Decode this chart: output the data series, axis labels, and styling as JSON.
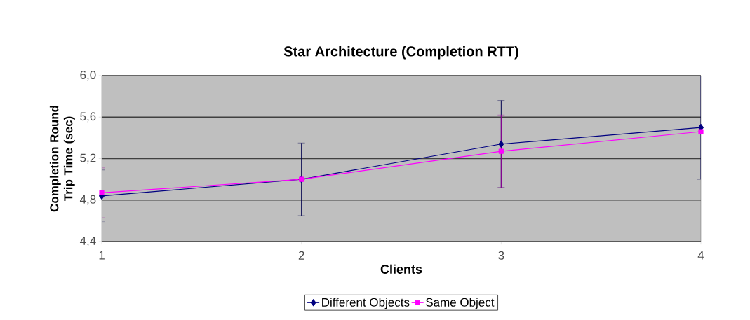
{
  "chart_data": {
    "type": "line",
    "title": "Star Architecture (Completion RTT)",
    "xlabel": "Clients",
    "ylabel": "Completion Round Trip Time (sec)",
    "x": [
      1,
      2,
      3,
      4
    ],
    "xlim": [
      1,
      4
    ],
    "xticks": [
      1,
      2,
      3,
      4
    ],
    "ylim": [
      4.4,
      6.0
    ],
    "yticks": [
      {
        "value": 4.4,
        "label": "4,4"
      },
      {
        "value": 4.8,
        "label": "4,8"
      },
      {
        "value": 5.2,
        "label": "5,2"
      },
      {
        "value": 5.6,
        "label": "5,6"
      },
      {
        "value": 6.0,
        "label": "6,0"
      }
    ],
    "grid": "y",
    "legend": "bottom",
    "series": [
      {
        "name": "Different Objects",
        "color": "#000080",
        "marker": "diamond",
        "values": [
          4.84,
          5.0,
          5.34,
          5.5
        ],
        "errors": [
          0.25,
          0.35,
          0.42,
          0.5
        ]
      },
      {
        "name": "Same Object",
        "color": "#ff00ff",
        "marker": "square",
        "values": [
          4.87,
          5.0,
          5.27,
          5.46
        ],
        "errors": [
          0.24,
          null,
          0.35,
          null
        ]
      }
    ]
  }
}
